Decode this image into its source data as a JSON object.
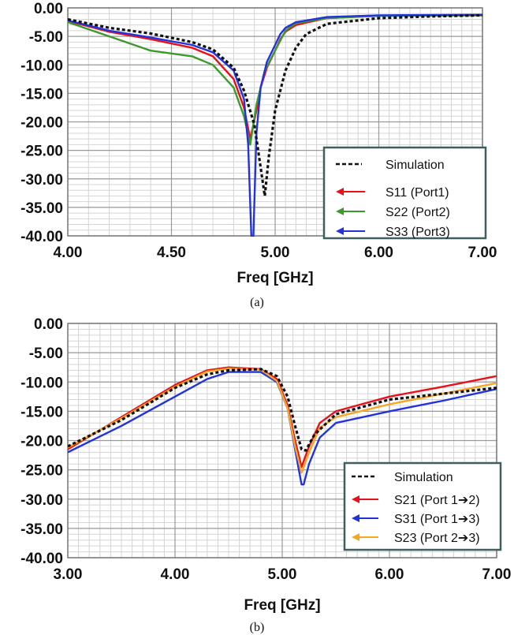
{
  "chart_data": [
    {
      "type": "line",
      "caption": "(a)",
      "xlabel": "Freq [GHz]",
      "ylabel": "",
      "xlim": [
        4.0,
        7.0
      ],
      "ylim": [
        -40,
        0
      ],
      "x_axis_break": {
        "left": [
          4.0,
          5.0
        ],
        "right": [
          5.0,
          7.0
        ],
        "note": "left half spans 4-5 GHz, right half spans 5-7 GHz"
      },
      "x_ticks": [
        {
          "value": 4.0,
          "label": "4.00"
        },
        {
          "value": 4.5,
          "label": "4.50"
        },
        {
          "value": 5.0,
          "label": "5.00"
        },
        {
          "value": 6.0,
          "label": "6.00"
        },
        {
          "value": 7.0,
          "label": "7.00"
        }
      ],
      "y_ticks": [
        {
          "value": 0,
          "label": "0.00"
        },
        {
          "value": -5,
          "label": "-5.00"
        },
        {
          "value": -10,
          "label": "-10.00"
        },
        {
          "value": -15,
          "label": "-15.00"
        },
        {
          "value": -20,
          "label": "-20.00"
        },
        {
          "value": -25,
          "label": "-25.00"
        },
        {
          "value": -30,
          "label": "-30.00"
        },
        {
          "value": -35,
          "label": "-35.00"
        },
        {
          "value": -40,
          "label": "-40.00"
        }
      ],
      "grid": true,
      "legend_position": "bottom-right",
      "series": [
        {
          "name": "Simulation",
          "color": "#111111",
          "dash": true,
          "x": [
            4.0,
            4.2,
            4.4,
            4.6,
            4.7,
            4.8,
            4.85,
            4.9,
            4.93,
            4.95,
            4.97,
            5.0,
            5.1,
            5.2,
            5.3,
            5.5,
            6.0,
            6.5,
            7.0
          ],
          "y": [
            -2.0,
            -3.5,
            -4.5,
            -6.0,
            -7.3,
            -10.5,
            -14.5,
            -20.5,
            -28.0,
            -33.0,
            -26.0,
            -18.0,
            -11.0,
            -7.0,
            -4.6,
            -2.8,
            -1.8,
            -1.5,
            -1.3
          ]
        },
        {
          "name": "S11 (Port1)",
          "color": "#e8101a",
          "x": [
            4.0,
            4.2,
            4.4,
            4.6,
            4.7,
            4.8,
            4.85,
            4.88,
            4.91,
            4.93,
            4.96,
            5.0,
            5.05,
            5.1,
            5.2,
            5.5,
            6.0,
            7.0
          ],
          "y": [
            -2.3,
            -4.2,
            -5.5,
            -7.0,
            -8.5,
            -12.5,
            -17.5,
            -23.0,
            -18.0,
            -14.0,
            -10.5,
            -7.5,
            -5.5,
            -4.2,
            -3.0,
            -1.8,
            -1.4,
            -1.3
          ]
        },
        {
          "name": "S22 (Port2)",
          "color": "#3c9a2c",
          "x": [
            4.0,
            4.2,
            4.4,
            4.5,
            4.6,
            4.7,
            4.8,
            4.85,
            4.88,
            4.91,
            4.95,
            5.0,
            5.1,
            5.2,
            5.5,
            6.0,
            7.0
          ],
          "y": [
            -2.5,
            -5.0,
            -7.5,
            -8.0,
            -8.5,
            -10.0,
            -14.0,
            -19.0,
            -24.0,
            -17.0,
            -11.0,
            -7.5,
            -4.0,
            -2.7,
            -1.8,
            -1.4,
            -1.3
          ]
        },
        {
          "name": "S33 (Port3)",
          "color": "#2233dd",
          "x": [
            4.0,
            4.2,
            4.4,
            4.6,
            4.7,
            4.8,
            4.85,
            4.87,
            4.885,
            4.895,
            4.91,
            4.93,
            4.96,
            5.0,
            5.05,
            5.1,
            5.2,
            5.5,
            6.0,
            7.0
          ],
          "y": [
            -2.2,
            -4.0,
            -5.2,
            -6.5,
            -7.8,
            -11.0,
            -16.0,
            -24.0,
            -40.0,
            -40.0,
            -22.0,
            -14.0,
            -9.5,
            -6.5,
            -4.6,
            -3.5,
            -2.5,
            -1.6,
            -1.3,
            -1.2
          ]
        }
      ],
      "legend": [
        {
          "label": "Simulation",
          "series": 0
        },
        {
          "label": "S11 (Port1)",
          "series": 1
        },
        {
          "label": "S22 (Port2)",
          "series": 2
        },
        {
          "label": "S33 (Port3)",
          "series": 3
        }
      ]
    },
    {
      "type": "line",
      "caption": "(b)",
      "xlabel": "Freq [GHz]",
      "ylabel": "",
      "xlim": [
        3.0,
        7.0
      ],
      "ylim": [
        -40,
        0
      ],
      "x_ticks": [
        {
          "value": 3.0,
          "label": "3.00"
        },
        {
          "value": 4.0,
          "label": "4.00"
        },
        {
          "value": 5.0,
          "label": "5.00"
        },
        {
          "value": 6.0,
          "label": "6.00"
        },
        {
          "value": 7.0,
          "label": "7.00"
        }
      ],
      "y_ticks": [
        {
          "value": 0,
          "label": "0.00"
        },
        {
          "value": -5,
          "label": "-5.00"
        },
        {
          "value": -10,
          "label": "-10.00"
        },
        {
          "value": -15,
          "label": "-15.00"
        },
        {
          "value": -20,
          "label": "-20.00"
        },
        {
          "value": -25,
          "label": "-25.00"
        },
        {
          "value": -30,
          "label": "-30.00"
        },
        {
          "value": -35,
          "label": "-35.00"
        },
        {
          "value": -40,
          "label": "-40.00"
        }
      ],
      "grid": true,
      "legend_position": "bottom-right",
      "series": [
        {
          "name": "Simulation",
          "color": "#111111",
          "dash": true,
          "x": [
            3.0,
            3.5,
            4.0,
            4.3,
            4.5,
            4.8,
            4.95,
            5.05,
            5.12,
            5.18,
            5.22,
            5.3,
            5.5,
            6.0,
            6.5,
            7.0
          ],
          "y": [
            -21.0,
            -16.5,
            -11.0,
            -8.7,
            -8.0,
            -7.8,
            -9.0,
            -12.5,
            -17.5,
            -21.5,
            -21.7,
            -19.0,
            -15.5,
            -13.0,
            -12.0,
            -11.0
          ]
        },
        {
          "name": "S21 (Port 1→2)",
          "color": "#e8101a",
          "x": [
            3.0,
            3.5,
            4.0,
            4.3,
            4.5,
            4.8,
            4.95,
            5.05,
            5.12,
            5.18,
            5.25,
            5.35,
            5.5,
            6.0,
            6.5,
            7.0
          ],
          "y": [
            -21.5,
            -16.0,
            -10.5,
            -8.0,
            -7.5,
            -7.8,
            -9.5,
            -14.0,
            -20.0,
            -24.5,
            -21.0,
            -17.0,
            -15.0,
            -12.5,
            -10.8,
            -9.0
          ]
        },
        {
          "name": "S31 (Port 1→3)",
          "color": "#2233dd",
          "x": [
            3.0,
            3.5,
            4.0,
            4.3,
            4.5,
            4.8,
            4.95,
            5.05,
            5.12,
            5.18,
            5.2,
            5.25,
            5.35,
            5.5,
            6.0,
            6.5,
            7.0
          ],
          "y": [
            -22.0,
            -17.5,
            -12.5,
            -9.5,
            -8.3,
            -8.3,
            -10.0,
            -14.5,
            -21.5,
            -27.5,
            -27.5,
            -24.0,
            -19.5,
            -17.0,
            -15.0,
            -13.2,
            -11.2
          ]
        },
        {
          "name": "S23 (Port 2→3)",
          "color": "#f5a623",
          "x": [
            3.0,
            3.5,
            4.0,
            4.3,
            4.5,
            4.8,
            4.95,
            5.05,
            5.12,
            5.18,
            5.25,
            5.35,
            5.5,
            6.0,
            6.5,
            7.0
          ],
          "y": [
            -21.2,
            -16.2,
            -10.8,
            -8.2,
            -7.7,
            -7.9,
            -9.8,
            -14.5,
            -21.0,
            -25.5,
            -22.0,
            -17.8,
            -16.0,
            -13.8,
            -12.0,
            -10.2
          ]
        }
      ],
      "legend": [
        {
          "label": "Simulation",
          "series": 0
        },
        {
          "label": "S21 (Port 1➔2)",
          "series": 1
        },
        {
          "label": "S31 (Port 1➔3)",
          "series": 2
        },
        {
          "label": "S23 (Port 2➔3)",
          "series": 3
        }
      ]
    }
  ]
}
